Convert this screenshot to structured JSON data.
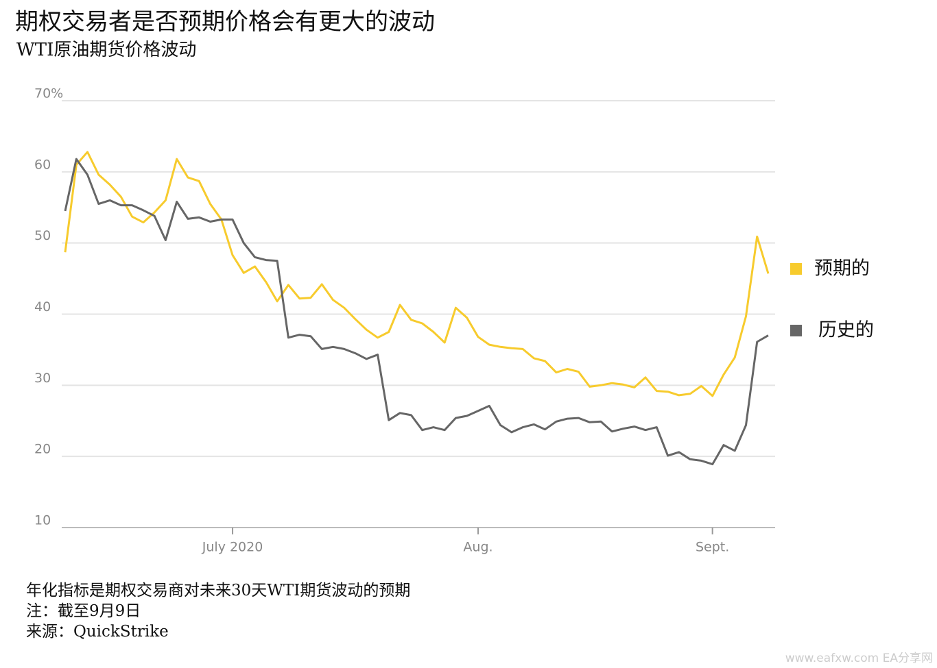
{
  "chart_data": {
    "type": "line",
    "title": "期权交易者是否预期价格会有更大的波动",
    "subtitle": "WTI原油期货价格波动",
    "categories": [
      null,
      null,
      null,
      null,
      null,
      null,
      null,
      null,
      null,
      null,
      null,
      null,
      null,
      null,
      null,
      "July 2020",
      null,
      null,
      null,
      null,
      null,
      null,
      null,
      null,
      null,
      null,
      null,
      null,
      null,
      null,
      null,
      null,
      null,
      null,
      null,
      null,
      null,
      "Aug.",
      null,
      null,
      null,
      null,
      null,
      null,
      null,
      null,
      null,
      null,
      null,
      null,
      null,
      null,
      null,
      null,
      null,
      null,
      null,
      null,
      "Sept.",
      null,
      null,
      null,
      null,
      null
    ],
    "series": [
      {
        "name": "预期的",
        "color": "#f7cb2d",
        "values": [
          48.7,
          61,
          62.8,
          59.6,
          58.2,
          56.5,
          53.7,
          52.9,
          54.3,
          56,
          61.8,
          59.2,
          58.7,
          55.5,
          53.3,
          48.3,
          45.8,
          46.7,
          44.5,
          41.8,
          44.1,
          42.2,
          42.3,
          44.2,
          42,
          40.9,
          39.3,
          37.8,
          36.7,
          37.5,
          41.3,
          39.2,
          38.7,
          37.5,
          36,
          40.9,
          39.5,
          36.8,
          35.7,
          35.4,
          35.2,
          35.1,
          33.8,
          33.4,
          31.8,
          32.3,
          31.9,
          29.8,
          30,
          30.3,
          30.1,
          29.7,
          31.1,
          29.2,
          29.1,
          28.6,
          28.8,
          29.9,
          28.5,
          31.5,
          33.9,
          39.7,
          50.9,
          45.7
        ]
      },
      {
        "name": "历史的",
        "color": "#666666",
        "values": [
          54.5,
          61.8,
          59.6,
          55.5,
          56,
          55.3,
          55.3,
          54.6,
          53.8,
          50.4,
          55.8,
          53.4,
          53.6,
          53,
          53.3,
          53.3,
          50,
          48,
          47.6,
          47.5,
          36.7,
          37.1,
          36.9,
          35.1,
          35.4,
          35.1,
          34.5,
          33.7,
          34.3,
          25.1,
          26.1,
          25.8,
          23.7,
          24.1,
          23.7,
          25.4,
          25.7,
          26.4,
          27.1,
          24.4,
          23.4,
          24.1,
          24.5,
          23.8,
          24.9,
          25.3,
          25.4,
          24.8,
          24.9,
          23.5,
          23.9,
          24.2,
          23.7,
          24.1,
          20.1,
          20.6,
          19.6,
          19.4,
          18.9,
          21.6,
          20.8,
          24.4,
          36.1,
          37
        ]
      }
    ],
    "ylim": [
      10,
      70
    ],
    "yticks": [
      10,
      20,
      30,
      40,
      50,
      60,
      {
        "value": 70,
        "label": "70%"
      }
    ],
    "grid": true,
    "legend": "right",
    "notes": [
      "年化指标是期权交易商对未来30天WTI期货波动的预期",
      "注：截至9月9日",
      "来源：QuickStrike"
    ],
    "watermark": "www.eafxw.com  EA分享网"
  }
}
